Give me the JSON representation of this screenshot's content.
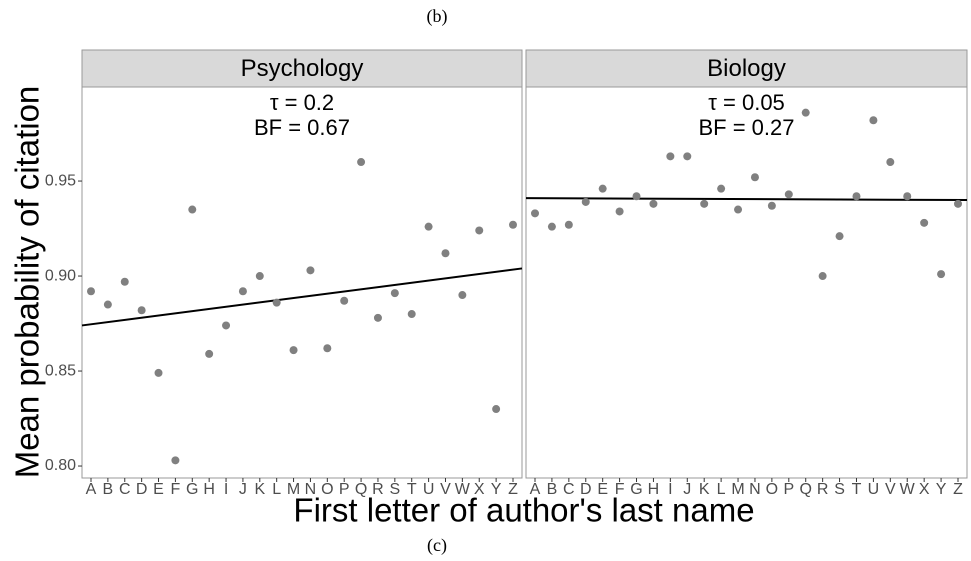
{
  "caption_top": "(b)",
  "caption_bottom": "(c)",
  "axis_labels": {
    "x": "First letter of author's last name",
    "y": "Mean probability of citation"
  },
  "chart_data": [
    {
      "type": "scatter",
      "title": "Psychology",
      "annotations": [
        "τ = 0.2",
        "BF = 0.67"
      ],
      "categories": [
        "A",
        "B",
        "C",
        "D",
        "E",
        "F",
        "G",
        "H",
        "I",
        "J",
        "K",
        "L",
        "M",
        "N",
        "O",
        "P",
        "Q",
        "R",
        "S",
        "T",
        "U",
        "V",
        "W",
        "X",
        "Y",
        "Z"
      ],
      "values": [
        0.892,
        0.885,
        0.897,
        0.882,
        0.849,
        0.803,
        0.935,
        0.859,
        0.874,
        0.892,
        0.9,
        0.886,
        0.861,
        0.903,
        0.862,
        0.887,
        0.96,
        0.878,
        0.891,
        0.88,
        0.926,
        0.912,
        0.89,
        0.924,
        0.83,
        0.927
      ],
      "color": "#808080",
      "trend": {
        "start": 0.874,
        "end": 0.904,
        "color": "#000000"
      },
      "ylim": [
        0.7937,
        0.9995
      ],
      "yticks": [
        {
          "value": 0.8,
          "label": "0.80"
        },
        0.85,
        {
          "value": 0.9,
          "label": "0.90"
        },
        0.95
      ]
    },
    {
      "type": "scatter",
      "title": "Biology",
      "annotations": [
        "τ = 0.05",
        "BF = 0.27"
      ],
      "categories": [
        "A",
        "B",
        "C",
        "D",
        "E",
        "F",
        "G",
        "H",
        "I",
        "J",
        "K",
        "L",
        "M",
        "N",
        "O",
        "P",
        "Q",
        "R",
        "S",
        "T",
        "U",
        "V",
        "W",
        "X",
        "Y",
        "Z"
      ],
      "values": [
        0.933,
        0.926,
        0.927,
        0.939,
        0.946,
        0.934,
        0.942,
        0.938,
        0.963,
        0.963,
        0.938,
        0.946,
        0.935,
        0.952,
        0.937,
        0.943,
        0.986,
        0.9,
        0.921,
        0.942,
        0.982,
        0.96,
        0.942,
        0.928,
        0.901,
        0.938
      ],
      "color": "#808080",
      "trend": {
        "start": 0.941,
        "end": 0.94,
        "color": "#000000"
      },
      "ylim": [
        0.7937,
        0.9995
      ]
    }
  ]
}
